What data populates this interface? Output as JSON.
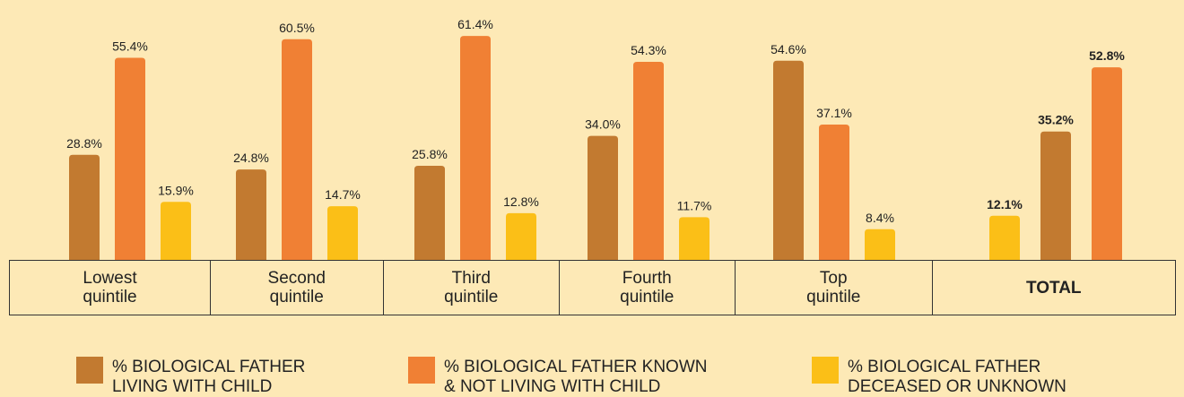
{
  "chart_data": {
    "type": "bar",
    "categories": [
      "Lowest\nquintile",
      "Second\nquintile",
      "Third\nquintile",
      "Fourth\nquintile",
      "Top\nquintile",
      "TOTAL"
    ],
    "series": [
      {
        "name": "% BIOLOGICAL FATHER\nLIVING WITH CHILD",
        "color": "#c27a30",
        "values": [
          28.8,
          24.8,
          25.8,
          34.0,
          54.6,
          35.2
        ],
        "value_labels": [
          "28.8%",
          "24.8%",
          "25.8%",
          "34.0%",
          "54.6%",
          "35.2%"
        ]
      },
      {
        "name": "% BIOLOGICAL FATHER KNOWN\n& NOT LIVING WITH CHILD",
        "color": "#f08034",
        "values": [
          55.4,
          60.5,
          61.4,
          54.3,
          37.1,
          52.8
        ],
        "value_labels": [
          "55.4%",
          "60.5%",
          "61.4%",
          "54.3%",
          "37.1%",
          "52.8%"
        ]
      },
      {
        "name": "% BIOLOGICAL FATHER\nDECEASED OR UNKNOWN",
        "color": "#fbbf17",
        "values": [
          15.9,
          14.7,
          12.8,
          11.7,
          8.4,
          12.1
        ],
        "value_labels": [
          "15.9%",
          "14.7%",
          "12.8%",
          "11.7%",
          "8.4%",
          "12.1%"
        ]
      }
    ]
  }
}
